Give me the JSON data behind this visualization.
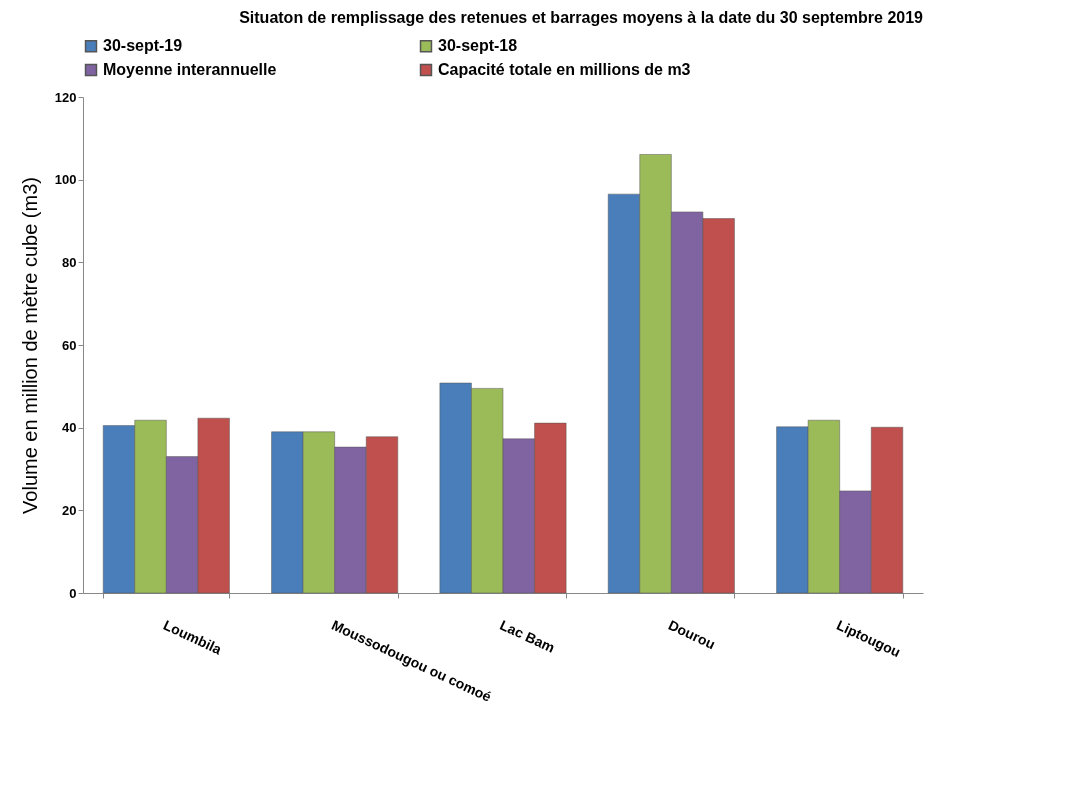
{
  "chart_data": {
    "type": "bar",
    "title": "Situaton de remplissage des retenues et barrages moyens à la date du 30 septembre 2019",
    "ylabel": "Volume en million de mètre cube (m3)",
    "categories": [
      "Loumbila",
      "Moussodougou ou comoé",
      "Lac Bam",
      "Dourou",
      "Liptougou"
    ],
    "series": [
      {
        "name": "30-sept-19",
        "color": "#4a7ebb",
        "values": [
          40.5,
          39.0,
          50.8,
          96.5,
          40.2
        ]
      },
      {
        "name": "30-sept-18",
        "color": "#9bbb59",
        "values": [
          41.8,
          39.0,
          49.5,
          106.1,
          41.8
        ]
      },
      {
        "name": "Moyenne interannuelle",
        "color": "#8064a2",
        "values": [
          33.0,
          35.3,
          37.3,
          92.2,
          24.7
        ]
      },
      {
        "name": "Capacité totale en millions de m3",
        "color": "#c0504d",
        "values": [
          42.3,
          37.8,
          41.1,
          90.6,
          40.1
        ]
      }
    ],
    "ylim": [
      0,
      120
    ],
    "yticks": [
      0,
      20,
      40,
      60,
      80,
      100,
      120
    ],
    "grid": false,
    "legend": "top"
  }
}
